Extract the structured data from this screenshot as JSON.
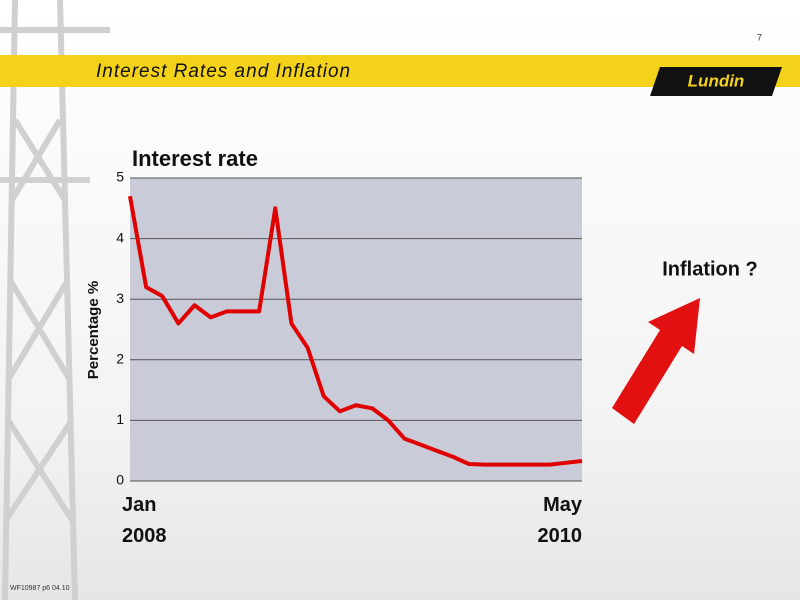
{
  "header": {
    "page_number": "7",
    "title": "Interest Rates and Inflation",
    "logo": "Lundin"
  },
  "chart_data": {
    "type": "line",
    "title": "Interest rate",
    "y_label": "Percentage %",
    "categories": [
      "Jan\n2008",
      null,
      null,
      null,
      null,
      null,
      null,
      null,
      null,
      null,
      null,
      null,
      null,
      null,
      null,
      null,
      null,
      null,
      null,
      null,
      null,
      null,
      null,
      null,
      null,
      null,
      null,
      null,
      "May\n2010"
    ],
    "values": [
      4.7,
      3.2,
      3.05,
      2.6,
      2.9,
      2.7,
      2.8,
      2.8,
      2.8,
      4.5,
      2.6,
      2.2,
      1.4,
      1.15,
      1.25,
      1.2,
      1.0,
      0.7,
      0.6,
      0.5,
      0.4,
      0.28,
      0.27,
      0.27,
      0.27,
      0.27,
      0.27,
      0.3,
      0.33
    ],
    "color": "#e00000",
    "ylim": [
      0,
      5
    ],
    "yticks": [
      0,
      1,
      2,
      3,
      4,
      5
    ],
    "grid": true
  },
  "annotation": "Inflation ?",
  "footer": "WF10987 p6 04.10"
}
